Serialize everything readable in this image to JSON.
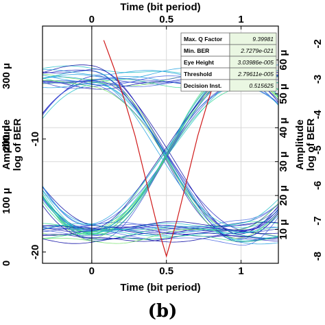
{
  "panel_label": "(b)",
  "chart_data": {
    "type": "eye-diagram",
    "title": "",
    "x_axis": {
      "label": "Time (bit period)",
      "range": [
        -0.33,
        1.25
      ],
      "ticks": [
        "0",
        "0.5",
        "1"
      ],
      "tick_values": [
        0,
        0.5,
        1
      ]
    },
    "y_left_outer": {
      "label": "Amplitude",
      "range": [
        0,
        380
      ],
      "ticks": [
        "0",
        "100 μ",
        "200 μ",
        "300 μ"
      ],
      "tick_values": [
        0,
        100,
        200,
        300
      ]
    },
    "y_left_inner": {
      "label": "log of BER",
      "range": [
        -21,
        0
      ],
      "ticks": [
        "-20",
        "-10"
      ],
      "tick_values": [
        -20,
        -10
      ]
    },
    "y_right_inner": {
      "label": "Amplitude",
      "range": [
        0,
        70
      ],
      "ticks": [
        "10 μ",
        "20 μ",
        "30 μ",
        "40 μ",
        "50 μ",
        "60 μ"
      ],
      "tick_values": [
        10,
        20,
        30,
        40,
        50,
        60
      ]
    },
    "y_right_outer": {
      "label": "log of BER",
      "range": [
        -8.2,
        -1.5
      ],
      "ticks": [
        "-2",
        "-3",
        "-4",
        "-5",
        "-6",
        "-7",
        "-8"
      ],
      "tick_values": [
        -2,
        -3,
        -4,
        -5,
        -6,
        -7,
        -8
      ]
    },
    "eye": {
      "high_level": 55,
      "low_level": 9,
      "noise": 3,
      "trace_count": 60,
      "colors": [
        "#2020c0",
        "#3a4fd0",
        "#1fa0e0",
        "#20c0c8",
        "#30d890",
        "#6ae060",
        "#4060e0",
        "#0000a0"
      ]
    },
    "ber_curve": {
      "color": "#d01818",
      "x": [
        0.08,
        0.15,
        0.22,
        0.29,
        0.36,
        0.43,
        0.5,
        0.57,
        0.64,
        0.71,
        0.78,
        0.85,
        0.92
      ],
      "log_ber": [
        -1.9,
        -2.7,
        -3.6,
        -4.6,
        -5.8,
        -7.0,
        -8.0,
        -7.0,
        -5.8,
        -4.6,
        -3.6,
        -2.7,
        -1.9
      ]
    },
    "grid": true,
    "info_table": [
      {
        "label": "Max. Q Factor",
        "value": "9.39981"
      },
      {
        "label": "Min. BER",
        "value": "2.7279e-021"
      },
      {
        "label": "Eye Height",
        "value": "3.03986e-005"
      },
      {
        "label": "Threshold",
        "value": "2.79611e-005"
      },
      {
        "label": "Decision Inst.",
        "value": "0.515625"
      }
    ]
  }
}
